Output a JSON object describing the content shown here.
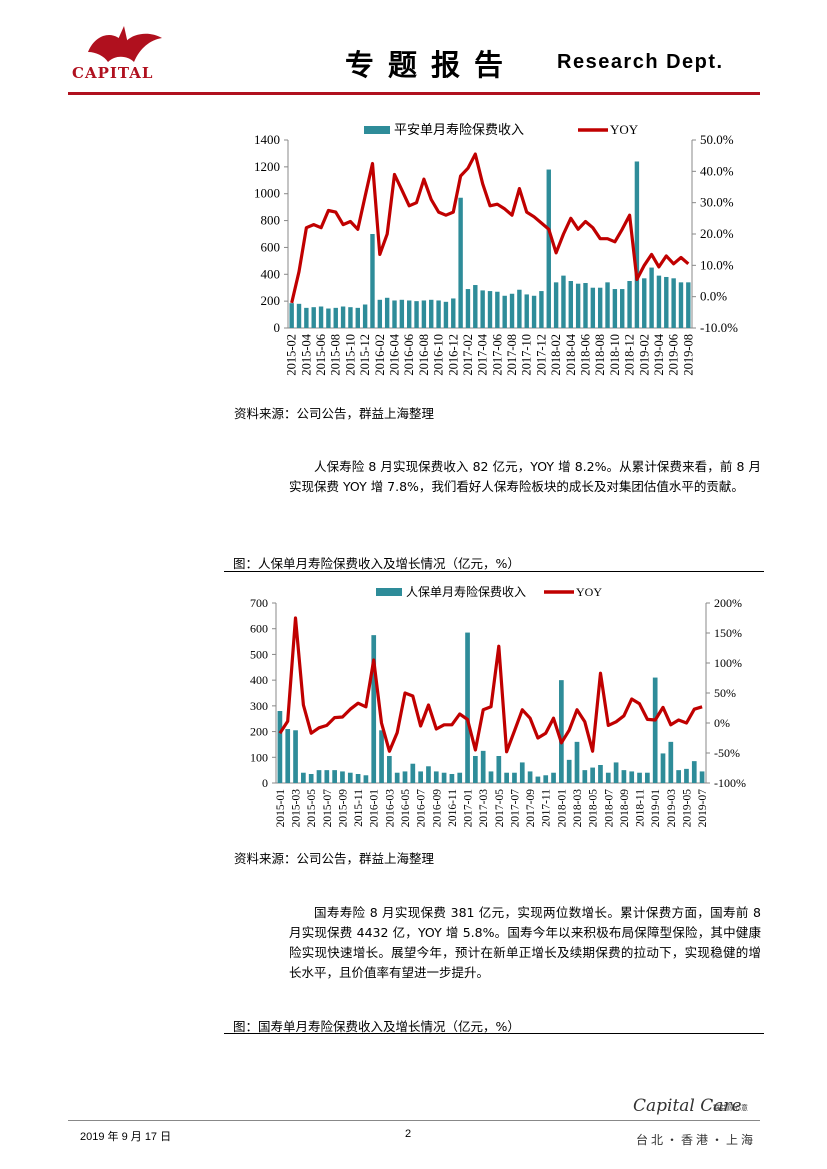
{
  "header": {
    "logo_text": "CAPITAL",
    "title": "专题报告",
    "dept": "Research Dept.",
    "brand_color": "#b0101e"
  },
  "charts_meta": {
    "bar_color": "#2e8c99",
    "line_color": "#c00000"
  },
  "chart_data": [
    {
      "type": "bar",
      "legend": [
        "平安单月寿险保费收入",
        "YOY"
      ],
      "categories": [
        "2015-02",
        "2015-03",
        "2015-04",
        "2015-05",
        "2015-06",
        "2015-07",
        "2015-08",
        "2015-09",
        "2015-10",
        "2015-11",
        "2015-12",
        "2016-01",
        "2016-02",
        "2016-03",
        "2016-04",
        "2016-05",
        "2016-06",
        "2016-07",
        "2016-08",
        "2016-09",
        "2016-10",
        "2016-11",
        "2016-12",
        "2017-01",
        "2017-02",
        "2017-03",
        "2017-04",
        "2017-05",
        "2017-06",
        "2017-07",
        "2017-08",
        "2017-09",
        "2017-10",
        "2017-11",
        "2017-12",
        "2018-01",
        "2018-02",
        "2018-03",
        "2018-04",
        "2018-05",
        "2018-06",
        "2018-07",
        "2018-08",
        "2018-09",
        "2018-10",
        "2018-11",
        "2018-12",
        "2019-01",
        "2019-02",
        "2019-03",
        "2019-04",
        "2019-05",
        "2019-06",
        "2019-07",
        "2019-08"
      ],
      "tick_labels": [
        "2015-02",
        "2015-04",
        "2015-06",
        "2015-08",
        "2015-10",
        "2015-12",
        "2016-02",
        "2016-04",
        "2016-06",
        "2016-08",
        "2016-10",
        "2016-12",
        "2017-02",
        "2017-04",
        "2017-06",
        "2017-08",
        "2017-10",
        "2017-12",
        "2018-02",
        "2018-04",
        "2018-06",
        "2018-08",
        "2018-10",
        "2018-12",
        "2019-02",
        "2019-04",
        "2019-06",
        "2019-08"
      ],
      "series": [
        {
          "name": "平安单月寿险保费收入",
          "axis": "left",
          "values": [
            185,
            180,
            150,
            155,
            160,
            145,
            150,
            160,
            155,
            150,
            175,
            700,
            210,
            225,
            205,
            210,
            205,
            200,
            205,
            210,
            205,
            195,
            220,
            970,
            290,
            320,
            280,
            275,
            270,
            240,
            255,
            285,
            250,
            240,
            275,
            1180,
            340,
            390,
            350,
            330,
            335,
            300,
            300,
            340,
            290,
            290,
            350,
            1240,
            370,
            450,
            390,
            380,
            370,
            340,
            340
          ]
        },
        {
          "name": "YOY",
          "axis": "right",
          "values": [
            -2,
            8,
            22,
            23,
            22,
            27.5,
            27,
            23,
            24,
            21.5,
            32,
            42.5,
            13.5,
            20,
            39,
            34,
            29,
            30,
            37.5,
            31,
            27,
            26,
            27,
            38.5,
            41,
            45.5,
            36,
            29,
            29.5,
            28,
            26,
            34.5,
            27,
            25.5,
            23.5,
            21.5,
            14,
            20,
            25,
            21.5,
            24,
            22,
            18.5,
            18.5,
            17.5,
            21.5,
            26,
            5.5,
            10,
            13.5,
            9.5,
            13,
            10.5,
            12.5,
            10.5
          ]
        }
      ],
      "y_left": {
        "min": 0,
        "max": 1400,
        "ticks": [
          "0",
          "200",
          "400",
          "600",
          "800",
          "1000",
          "1200",
          "1400"
        ]
      },
      "y_right": {
        "min": -10,
        "max": 50,
        "ticks": [
          "-10.0%",
          "0.0%",
          "10.0%",
          "20.0%",
          "30.0%",
          "40.0%",
          "50.0%"
        ]
      }
    },
    {
      "type": "bar",
      "legend": [
        "人保单月寿险保费收入",
        "YOY"
      ],
      "categories": [
        "2015-01",
        "2015-02",
        "2015-03",
        "2015-04",
        "2015-05",
        "2015-06",
        "2015-07",
        "2015-08",
        "2015-09",
        "2015-10",
        "2015-11",
        "2015-12",
        "2016-01",
        "2016-02",
        "2016-03",
        "2016-04",
        "2016-05",
        "2016-06",
        "2016-07",
        "2016-08",
        "2016-09",
        "2016-10",
        "2016-11",
        "2016-12",
        "2017-01",
        "2017-02",
        "2017-03",
        "2017-04",
        "2017-05",
        "2017-06",
        "2017-07",
        "2017-08",
        "2017-09",
        "2017-10",
        "2017-11",
        "2017-12",
        "2018-01",
        "2018-02",
        "2018-03",
        "2018-04",
        "2018-05",
        "2018-06",
        "2018-07",
        "2018-08",
        "2018-09",
        "2018-10",
        "2018-11",
        "2018-12",
        "2019-01",
        "2019-02",
        "2019-03",
        "2019-04",
        "2019-05",
        "2019-06",
        "2019-07"
      ],
      "tick_labels": [
        "2015-01",
        "2015-03",
        "2015-05",
        "2015-07",
        "2015-09",
        "2015-11",
        "2016-01",
        "2016-03",
        "2016-05",
        "2016-07",
        "2016-09",
        "2016-11",
        "2017-01",
        "2017-03",
        "2017-05",
        "2017-07",
        "2017-09",
        "2017-11",
        "2018-01",
        "2018-03",
        "2018-05",
        "2018-07",
        "2018-09",
        "2018-11",
        "2019-01",
        "2019-03",
        "2019-05",
        "2019-07"
      ],
      "series": [
        {
          "name": "人保单月寿险保费收入",
          "axis": "left",
          "values": [
            280,
            210,
            205,
            40,
            35,
            50,
            50,
            50,
            45,
            40,
            35,
            30,
            575,
            205,
            105,
            40,
            45,
            75,
            45,
            65,
            45,
            40,
            35,
            40,
            585,
            105,
            125,
            45,
            105,
            40,
            40,
            80,
            45,
            25,
            30,
            40,
            400,
            90,
            160,
            50,
            60,
            70,
            40,
            80,
            50,
            45,
            40,
            40,
            410,
            115,
            160,
            50,
            55,
            85,
            45
          ]
        },
        {
          "name": "YOY",
          "axis": "right",
          "values": [
            -17,
            3,
            175,
            30,
            -17,
            -8,
            -4,
            9,
            10,
            23,
            33,
            27,
            105,
            0,
            -47,
            -16,
            50,
            45,
            -5,
            30,
            -10,
            -3,
            -3,
            15,
            6,
            -45,
            22,
            27,
            128,
            -48,
            -13,
            22,
            8,
            -25,
            -17,
            8,
            -33,
            -12,
            22,
            2,
            -47,
            83,
            -4,
            2,
            12,
            40,
            32,
            6,
            5,
            26,
            -3,
            5,
            0,
            23,
            27
          ]
        }
      ],
      "y_left": {
        "min": 0,
        "max": 700,
        "ticks": [
          "0",
          "100",
          "200",
          "300",
          "400",
          "500",
          "600",
          "700"
        ]
      },
      "y_right": {
        "min": -100,
        "max": 200,
        "ticks": [
          "-100%",
          "-50%",
          "0%",
          "50%",
          "100%",
          "150%",
          "200%"
        ]
      }
    }
  ],
  "sources": [
    "资料来源：公司公告，群益上海整理",
    "资料来源：公司公告，群益上海整理"
  ],
  "paragraphs": [
    "人保寿险 8 月实现保费收入 82 亿元，YOY 增 8.2%。从累计保费来看，前 8 月实现保费 YOY 增 7.8%，我们看好人保寿险板块的成长及对集团估值水平的贡献。",
    "国寿寿险 8 月实现保费 381 亿元，实现两位数增长。累计保费方面，国寿前 8 月实现保费 4432 亿，YOY 增 5.8%。国寿今年以来积极布局保障型保险，其中健康险实现快速增长。展望今年，预计在新单正增长及续期保费的拉动下，实现稳健的增长水平，且价值率有望进一步提升。"
  ],
  "captions": [
    "图：人保单月寿险保费收入及增长情况（亿元，%）",
    "图：国寿单月寿险保费收入及增长情况（亿元，%）"
  ],
  "footer": {
    "date": "2019 年 9 月 17 日",
    "page": "2",
    "brand": "Capital Care",
    "brand_sub": "群益顾心意",
    "cities": "台北・香港・上海"
  }
}
